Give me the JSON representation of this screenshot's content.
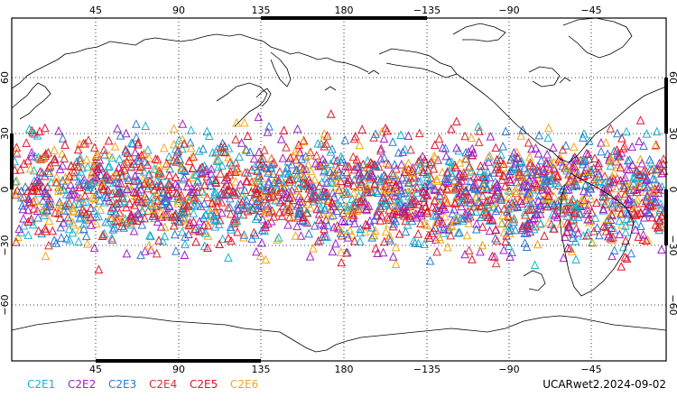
{
  "map": {
    "projection": "equirectangular",
    "central_longitude": 180,
    "longitude_ticks": [
      "45",
      "90",
      "135",
      "180",
      "−135",
      "−90",
      "−45"
    ],
    "latitude_ticks": [
      "60",
      "30",
      "0",
      "−30",
      "−60"
    ],
    "gridlines": "dotted",
    "marker_shape": "open triangle",
    "colors": {
      "background": "#ffffff",
      "coastline": "#000000",
      "frame": "#000000"
    }
  },
  "legend": {
    "placement": "bottom-left",
    "items": [
      {
        "label": "C2E1",
        "color": "#19b4d2"
      },
      {
        "label": "C2E2",
        "color": "#a020c8"
      },
      {
        "label": "C2E3",
        "color": "#2a7ad6"
      },
      {
        "label": "C2E4",
        "color": "#d2322d"
      },
      {
        "label": "C2E5",
        "color": "#e6102a"
      },
      {
        "label": "C2E6",
        "color": "#f0a818"
      }
    ]
  },
  "footer": {
    "label": "UCARwet2.2024-09-02"
  }
}
